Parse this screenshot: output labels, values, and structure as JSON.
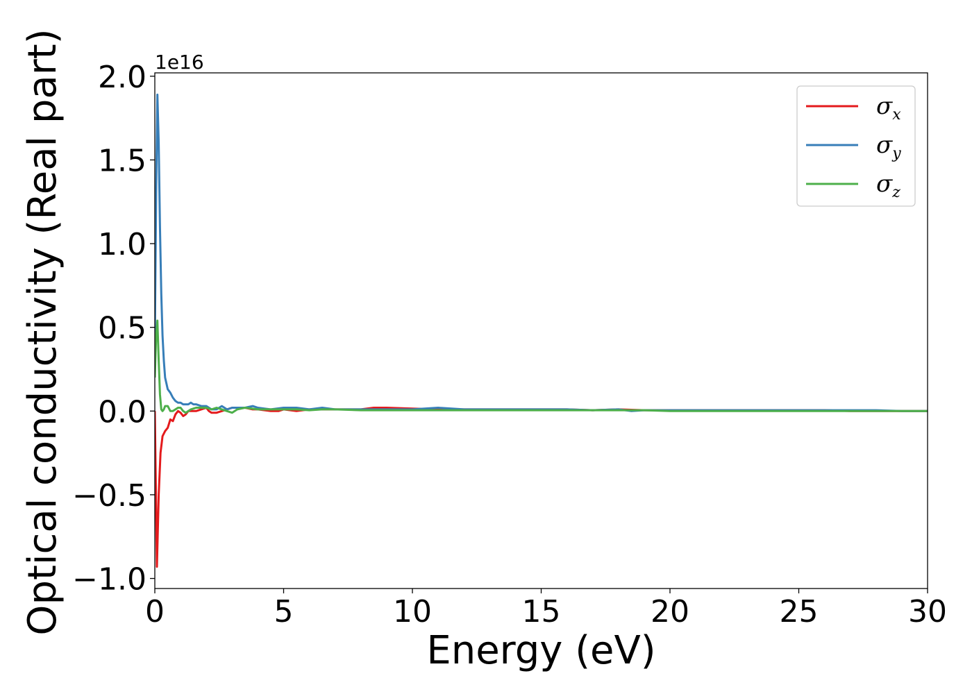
{
  "chart_data": {
    "type": "line",
    "xlabel": "Energy (eV)",
    "ylabel": "Optical conductivity (Real part)",
    "y_offset_label": "1e16",
    "y_scale": 1e+16,
    "xlim": [
      0,
      30
    ],
    "ylim": [
      -1.06,
      2.02
    ],
    "x_ticks": [
      0,
      5,
      10,
      15,
      20,
      25,
      30
    ],
    "x_tick_labels": [
      "0",
      "5",
      "10",
      "15",
      "20",
      "25",
      "30"
    ],
    "y_ticks": [
      -1.0,
      -0.5,
      0.0,
      0.5,
      1.0,
      1.5,
      2.0
    ],
    "y_tick_labels": [
      "−1.0",
      "−0.5",
      "0.0",
      "0.5",
      "1.0",
      "1.5",
      "2.0"
    ],
    "grid": false,
    "legend_position": "top-right",
    "series": [
      {
        "name": "σx",
        "symbol": "σ",
        "subscript": "x",
        "color": "#e41a1c",
        "x": [
          0,
          0.08,
          0.15,
          0.22,
          0.3,
          0.4,
          0.5,
          0.6,
          0.7,
          0.8,
          0.9,
          1.0,
          1.1,
          1.2,
          1.3,
          1.4,
          1.6,
          1.8,
          2.0,
          2.1,
          2.2,
          2.4,
          2.6,
          2.8,
          3.0,
          3.2,
          3.5,
          3.8,
          4.0,
          4.5,
          4.8,
          5.0,
          5.5,
          6.0,
          6.5,
          7.0,
          7.5,
          8.0,
          8.5,
          8.8,
          9.0,
          10.0,
          11.0,
          12.0,
          13.0,
          14.0,
          15.0,
          16.0,
          17.0,
          18.0,
          19.0,
          20.0,
          22.0,
          24.0,
          26.0,
          27.0,
          28.0,
          29.0,
          30.0
        ],
        "y": [
          0.0,
          -0.93,
          -0.5,
          -0.25,
          -0.15,
          -0.12,
          -0.1,
          -0.05,
          -0.06,
          -0.02,
          0.0,
          -0.01,
          -0.03,
          -0.02,
          0.0,
          0.0,
          0.0,
          0.01,
          0.02,
          0.0,
          -0.01,
          -0.01,
          0.0,
          0.01,
          0.02,
          0.02,
          0.02,
          0.01,
          0.01,
          0.0,
          0.0,
          0.01,
          0.0,
          0.01,
          0.01,
          0.01,
          0.01,
          0.01,
          0.02,
          0.02,
          0.02,
          0.015,
          0.01,
          0.01,
          0.01,
          0.01,
          0.01,
          0.01,
          0.005,
          0.01,
          0.005,
          0.005,
          0.005,
          0.005,
          0.005,
          0.0,
          0.0,
          0.0,
          0.0
        ]
      },
      {
        "name": "σy",
        "symbol": "σ",
        "subscript": "y",
        "color": "#377eb8",
        "x": [
          0,
          0.05,
          0.1,
          0.15,
          0.2,
          0.25,
          0.3,
          0.35,
          0.4,
          0.5,
          0.6,
          0.7,
          0.8,
          0.9,
          1.0,
          1.1,
          1.2,
          1.3,
          1.4,
          1.5,
          1.6,
          1.8,
          2.0,
          2.2,
          2.4,
          2.6,
          2.8,
          3.0,
          3.2,
          3.5,
          3.8,
          4.0,
          4.5,
          5.0,
          5.5,
          6.0,
          6.5,
          7.0,
          8.0,
          9.0,
          10.0,
          11.0,
          12.0,
          13.0,
          14.0,
          15.0,
          16.0,
          17.0,
          18.0,
          18.5,
          19.0,
          20.0,
          22.0,
          24.0,
          26.0,
          28.0,
          29.0,
          30.0
        ],
        "y": [
          0.4,
          1.3,
          1.89,
          1.6,
          1.1,
          0.7,
          0.45,
          0.3,
          0.2,
          0.13,
          0.11,
          0.08,
          0.06,
          0.05,
          0.05,
          0.04,
          0.04,
          0.04,
          0.05,
          0.04,
          0.04,
          0.03,
          0.03,
          0.01,
          0.01,
          0.03,
          0.01,
          0.02,
          0.02,
          0.02,
          0.03,
          0.02,
          0.01,
          0.02,
          0.02,
          0.01,
          0.02,
          0.01,
          0.01,
          0.01,
          0.01,
          0.02,
          0.01,
          0.01,
          0.01,
          0.01,
          0.01,
          0.005,
          0.01,
          0.0,
          0.005,
          0.005,
          0.005,
          0.005,
          0.005,
          0.005,
          0.0,
          0.0
        ]
      },
      {
        "name": "σz",
        "symbol": "σ",
        "subscript": "z",
        "color": "#4daf4a",
        "x": [
          0,
          0.05,
          0.1,
          0.15,
          0.2,
          0.25,
          0.3,
          0.35,
          0.4,
          0.5,
          0.6,
          0.7,
          0.8,
          0.9,
          1.0,
          1.1,
          1.2,
          1.4,
          1.6,
          1.8,
          2.0,
          2.2,
          2.4,
          2.6,
          2.8,
          3.0,
          3.2,
          3.5,
          4.0,
          4.5,
          5.0,
          5.5,
          6.0,
          6.5,
          7.0,
          8.0,
          9.0,
          10.0,
          11.0,
          12.0,
          13.0,
          14.0,
          15.0,
          16.0,
          17.0,
          18.0,
          19.0,
          20.0,
          22.0,
          24.0,
          26.0,
          28.0,
          30.0
        ],
        "y": [
          0.2,
          0.45,
          0.54,
          0.3,
          0.1,
          0.01,
          0.0,
          0.01,
          0.03,
          0.03,
          0.0,
          0.0,
          0.01,
          0.02,
          0.02,
          0.0,
          -0.01,
          0.01,
          0.02,
          0.02,
          0.02,
          0.01,
          0.02,
          0.01,
          0.0,
          -0.01,
          0.01,
          0.02,
          0.01,
          0.01,
          0.01,
          0.01,
          0.005,
          0.01,
          0.01,
          0.005,
          0.005,
          0.005,
          0.005,
          0.005,
          0.005,
          0.005,
          0.005,
          0.005,
          0.005,
          0.005,
          0.005,
          0.0,
          0.0,
          0.0,
          0.0,
          0.0,
          0.0
        ]
      }
    ]
  }
}
